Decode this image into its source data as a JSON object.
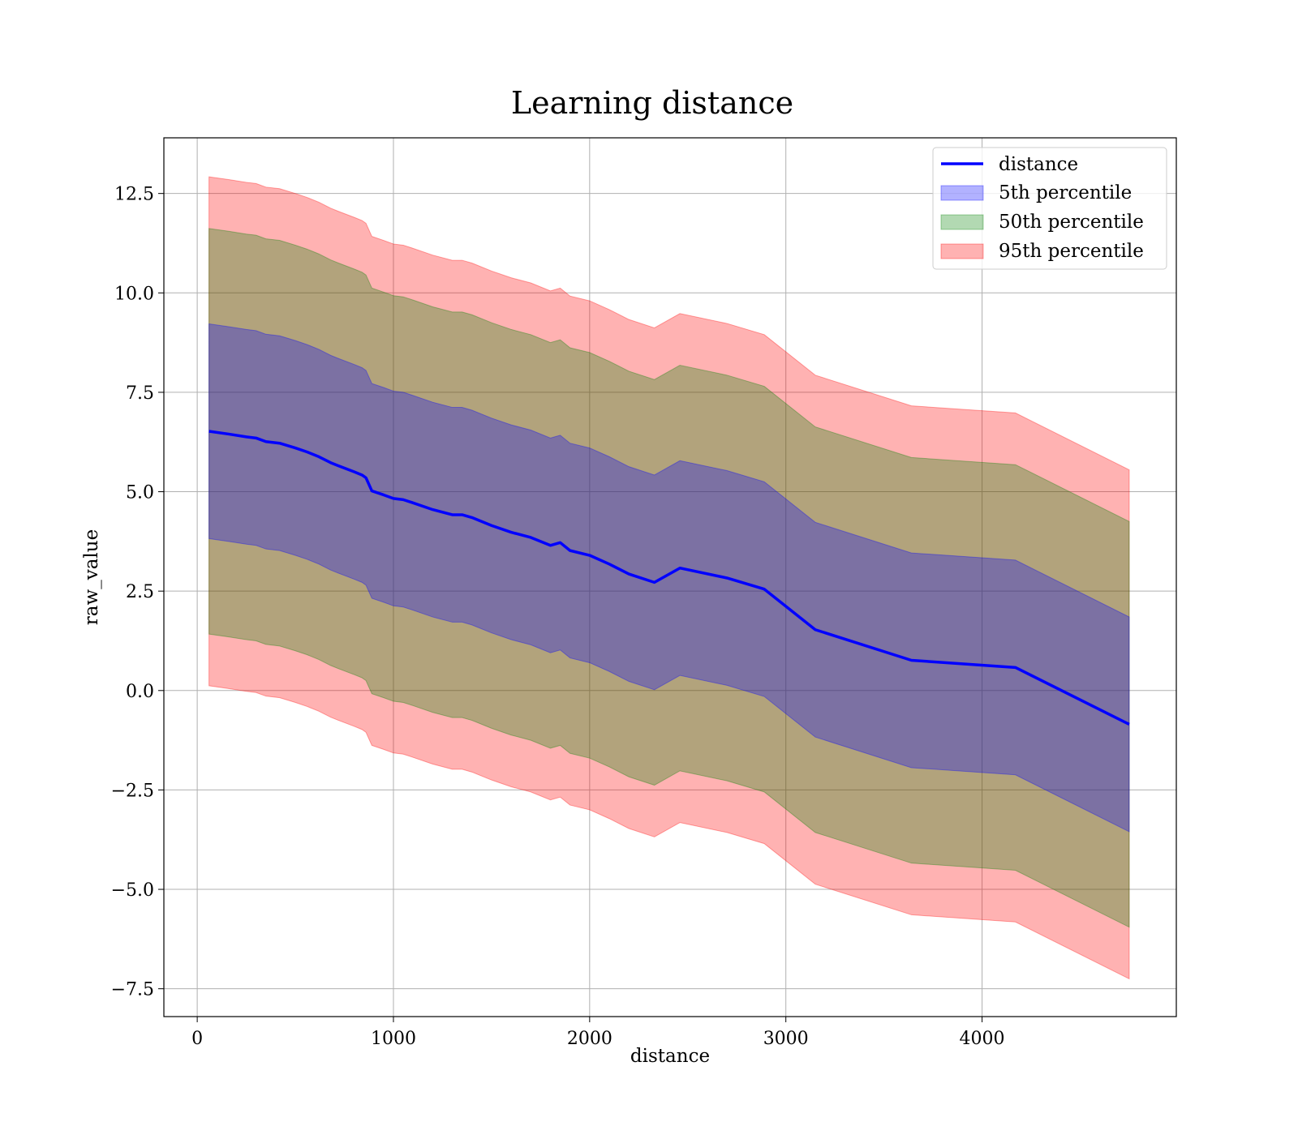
{
  "chart_data": {
    "type": "line",
    "title": "Learning distance",
    "xlabel": "distance",
    "ylabel": "raw_value",
    "xlim": [
      -170,
      4990
    ],
    "ylim": [
      -8.2,
      13.9
    ],
    "xticks": [
      0,
      1000,
      2000,
      3000,
      4000
    ],
    "xtick_labels": [
      "0",
      "1000",
      "2000",
      "3000",
      "4000"
    ],
    "yticks": [
      12.5,
      10.0,
      7.5,
      5.0,
      2.5,
      0.0,
      -2.5,
      -5.0,
      -7.5
    ],
    "ytick_labels": [
      "12.5",
      "10.0",
      "7.5",
      "5.0",
      "2.5",
      "0.0",
      "−2.5",
      "−5.0",
      "−7.5"
    ],
    "grid": true,
    "legend_position": "top-right",
    "colors": {
      "line": "#0000ff",
      "band_5th": "#0000ff",
      "band_50th": "#008000",
      "band_95th": "#ff0000",
      "grid": "#b0b0b0"
    },
    "line": {
      "name": "distance",
      "x": [
        60,
        160,
        250,
        300,
        350,
        420,
        500,
        560,
        620,
        680,
        720,
        800,
        840,
        860,
        890,
        950,
        1000,
        1050,
        1100,
        1200,
        1300,
        1350,
        1400,
        1500,
        1600,
        1700,
        1800,
        1850,
        1900,
        2000,
        2100,
        2200,
        2330,
        2460,
        2700,
        2890,
        3150,
        3640,
        4170,
        4750
      ],
      "y": [
        6.52,
        6.45,
        6.38,
        6.35,
        6.26,
        6.22,
        6.1,
        6.0,
        5.88,
        5.73,
        5.65,
        5.5,
        5.42,
        5.35,
        5.02,
        4.92,
        4.83,
        4.8,
        4.72,
        4.55,
        4.42,
        4.42,
        4.35,
        4.15,
        3.98,
        3.85,
        3.65,
        3.72,
        3.52,
        3.4,
        3.18,
        2.93,
        2.72,
        3.08,
        2.83,
        2.55,
        1.53,
        0.76,
        0.58,
        -0.85
      ]
    },
    "bands": [
      {
        "name": "5th percentile",
        "offset": 2.7
      },
      {
        "name": "50th percentile",
        "offset": 5.1
      },
      {
        "name": "95th percentile",
        "offset": 6.4
      }
    ],
    "legend": [
      "distance",
      "5th percentile",
      "50th percentile",
      "95th percentile"
    ]
  }
}
